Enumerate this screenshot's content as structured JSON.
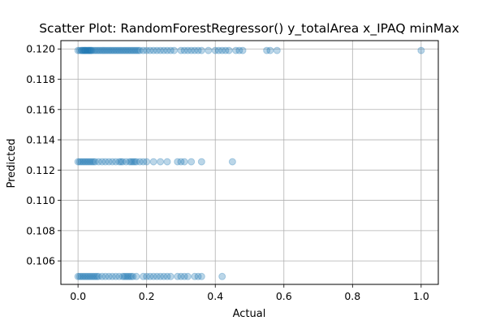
{
  "chart_data": {
    "type": "scatter",
    "title": "Scatter Plot: RandomForestRegressor() y_totalArea x_IPAQ minMax",
    "xlabel": "Actual",
    "ylabel": "Predicted",
    "xlim": [
      -0.05,
      1.05
    ],
    "ylim": [
      0.10445,
      0.12055
    ],
    "x_ticks": [
      0.0,
      0.2,
      0.4,
      0.6,
      0.8,
      1.0
    ],
    "x_tick_labels": [
      "0.0",
      "0.2",
      "0.4",
      "0.6",
      "0.8",
      "1.0"
    ],
    "y_ticks": [
      0.106,
      0.108,
      0.11,
      0.112,
      0.114,
      0.116,
      0.118,
      0.12
    ],
    "y_tick_labels": [
      "0.106",
      "0.108",
      "0.110",
      "0.112",
      "0.114",
      "0.116",
      "0.118",
      "0.120"
    ],
    "grid": true,
    "point_color": "#1f77b4",
    "point_alpha": 0.3,
    "series": [
      {
        "x": [
          0.0,
          0.005,
          0.01,
          0.012,
          0.015,
          0.018,
          0.02,
          0.022,
          0.025,
          0.028,
          0.03,
          0.033,
          0.035,
          0.038,
          0.04,
          0.045,
          0.05,
          0.055,
          0.06,
          0.065,
          0.07,
          0.075,
          0.08,
          0.085,
          0.09,
          0.095,
          0.1,
          0.105,
          0.11,
          0.115,
          0.12,
          0.125,
          0.13,
          0.135,
          0.14,
          0.145,
          0.15,
          0.155,
          0.16,
          0.165,
          0.17,
          0.175,
          0.18,
          0.19,
          0.2,
          0.21,
          0.22,
          0.23,
          0.24,
          0.25,
          0.26,
          0.27,
          0.28,
          0.3,
          0.31,
          0.32,
          0.33,
          0.34,
          0.35,
          0.36,
          0.38,
          0.4,
          0.41,
          0.42,
          0.43,
          0.44,
          0.46,
          0.47,
          0.48,
          0.55,
          0.56,
          0.58,
          1.0,
          0.0,
          0.005,
          0.01,
          0.015,
          0.02,
          0.025,
          0.03,
          0.035,
          0.04,
          0.045,
          0.05,
          0.06,
          0.07,
          0.08,
          0.09,
          0.1,
          0.11,
          0.12,
          0.125,
          0.13,
          0.14,
          0.15,
          0.155,
          0.16,
          0.165,
          0.17,
          0.18,
          0.19,
          0.2,
          0.22,
          0.24,
          0.26,
          0.29,
          0.3,
          0.31,
          0.33,
          0.36,
          0.45,
          0.0,
          0.005,
          0.01,
          0.015,
          0.02,
          0.025,
          0.03,
          0.035,
          0.04,
          0.045,
          0.05,
          0.055,
          0.06,
          0.07,
          0.08,
          0.09,
          0.1,
          0.11,
          0.12,
          0.13,
          0.135,
          0.14,
          0.145,
          0.15,
          0.155,
          0.16,
          0.17,
          0.19,
          0.2,
          0.21,
          0.22,
          0.23,
          0.24,
          0.25,
          0.26,
          0.27,
          0.29,
          0.3,
          0.31,
          0.32,
          0.34,
          0.35,
          0.36,
          0.42
        ],
        "y": [
          0.1199,
          0.1199,
          0.1199,
          0.1199,
          0.1199,
          0.1199,
          0.1199,
          0.1199,
          0.1199,
          0.1199,
          0.1199,
          0.1199,
          0.1199,
          0.1199,
          0.1199,
          0.1199,
          0.1199,
          0.1199,
          0.1199,
          0.1199,
          0.1199,
          0.1199,
          0.1199,
          0.1199,
          0.1199,
          0.1199,
          0.1199,
          0.1199,
          0.1199,
          0.1199,
          0.1199,
          0.1199,
          0.1199,
          0.1199,
          0.1199,
          0.1199,
          0.1199,
          0.1199,
          0.1199,
          0.1199,
          0.1199,
          0.1199,
          0.1199,
          0.1199,
          0.1199,
          0.1199,
          0.1199,
          0.1199,
          0.1199,
          0.1199,
          0.1199,
          0.1199,
          0.1199,
          0.1199,
          0.1199,
          0.1199,
          0.1199,
          0.1199,
          0.1199,
          0.1199,
          0.1199,
          0.1199,
          0.1199,
          0.1199,
          0.1199,
          0.1199,
          0.1199,
          0.1199,
          0.1199,
          0.1199,
          0.1199,
          0.1199,
          0.1199,
          0.11255,
          0.11255,
          0.11255,
          0.11255,
          0.11255,
          0.11255,
          0.11255,
          0.11255,
          0.11255,
          0.11255,
          0.11255,
          0.11255,
          0.11255,
          0.11255,
          0.11255,
          0.11255,
          0.11255,
          0.11255,
          0.11255,
          0.11255,
          0.11255,
          0.11255,
          0.11255,
          0.11255,
          0.11255,
          0.11255,
          0.11255,
          0.11255,
          0.11255,
          0.11255,
          0.11255,
          0.11255,
          0.11255,
          0.11255,
          0.11255,
          0.11255,
          0.11255,
          0.11255,
          0.10497,
          0.10497,
          0.10497,
          0.10497,
          0.10497,
          0.10497,
          0.10497,
          0.10497,
          0.10497,
          0.10497,
          0.10497,
          0.10497,
          0.10497,
          0.10497,
          0.10497,
          0.10497,
          0.10497,
          0.10497,
          0.10497,
          0.10497,
          0.10497,
          0.10497,
          0.10497,
          0.10497,
          0.10497,
          0.10497,
          0.10497,
          0.10497,
          0.10497,
          0.10497,
          0.10497,
          0.10497,
          0.10497,
          0.10497,
          0.10497,
          0.10497,
          0.10497,
          0.10497,
          0.10497,
          0.10497,
          0.10497,
          0.10497,
          0.10497,
          0.10497
        ]
      }
    ]
  }
}
